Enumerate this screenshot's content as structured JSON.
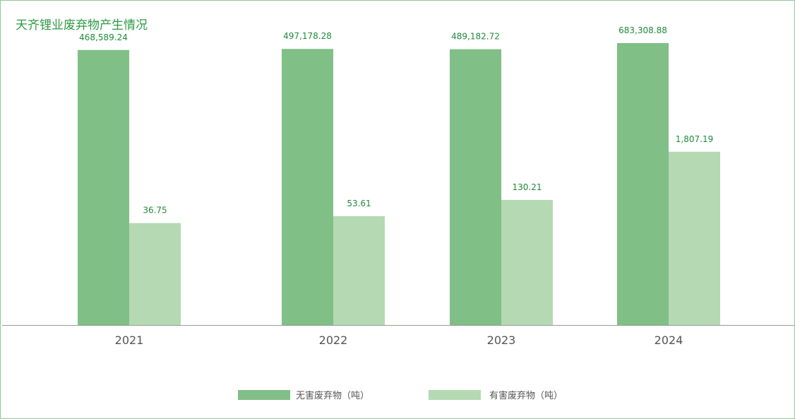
{
  "chart_data": {
    "type": "bar",
    "title": "天齐锂业废弃物产生情况",
    "categories": [
      "2021",
      "2022",
      "2023",
      "2024"
    ],
    "series": [
      {
        "name": "无害废弃物（吨）",
        "values": [
          468589.24,
          497178.28,
          489182.72,
          683308.88
        ],
        "labels": [
          "468,589.24",
          "497,178.28",
          "489,182.72",
          "683,308.88"
        ],
        "color": "#80bf86"
      },
      {
        "name": "有害废弃物（吨）",
        "values": [
          36.75,
          53.61,
          130.21,
          1807.19
        ],
        "labels": [
          "36.75",
          "53.61",
          "130.21",
          "1,807.19"
        ],
        "color": "#b5d9b3"
      }
    ],
    "xlabel": "",
    "ylabel": "",
    "grid": false,
    "legend": "bottom",
    "colors": {
      "title": "#2e9a44",
      "label": "#1e8a3c",
      "axis": "#9a9a9a",
      "tick": "#555555"
    }
  }
}
